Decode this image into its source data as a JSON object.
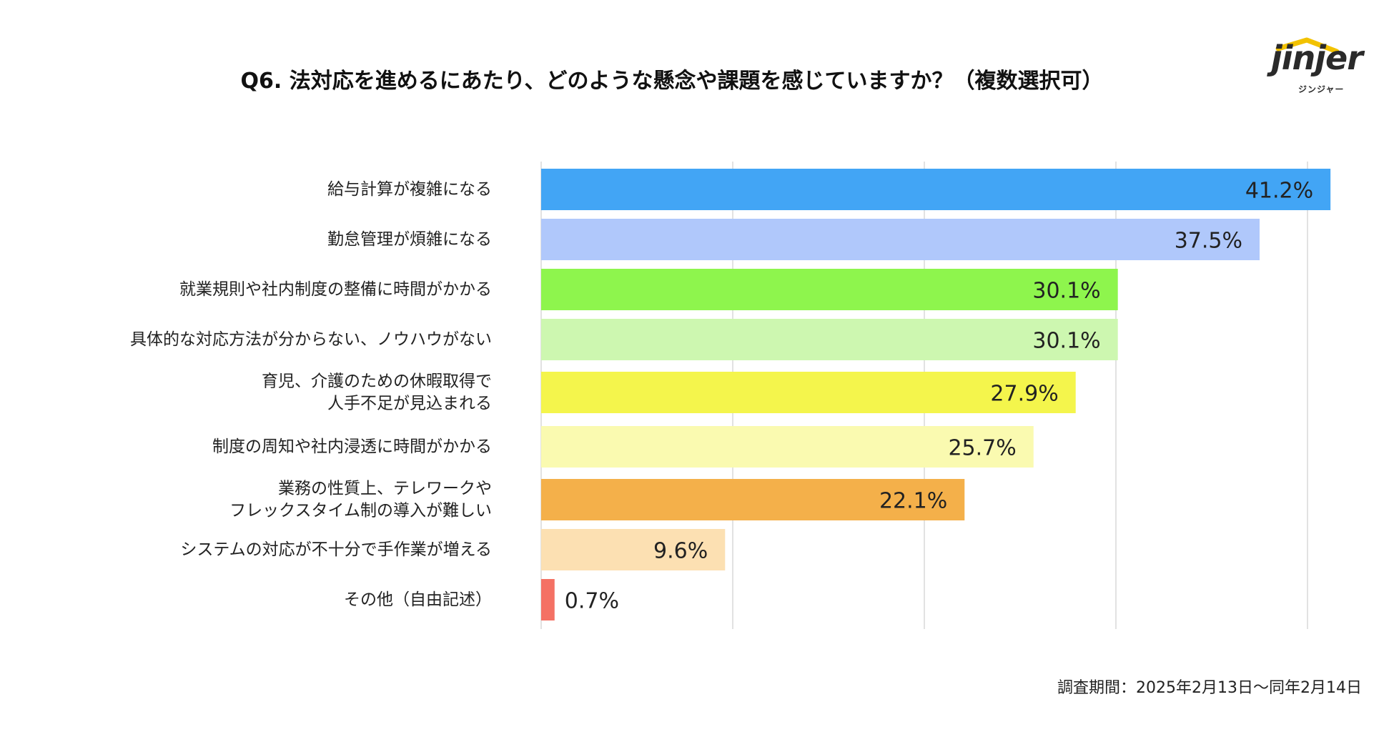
{
  "title": "Q6. 法対応を進めるにあたり、どのような懸念や課題を感じていますか？（複数選択可）",
  "logo": {
    "name": "jinjer",
    "subtitle": "ジンジャー"
  },
  "footnote": "調査期間：2025年2月13日〜同年2月14日",
  "chart_data": {
    "type": "bar",
    "orientation": "horizontal",
    "title": "Q6. 法対応を進めるにあたり、どのような懸念や課題を感じていますか？（複数選択可）",
    "unit": "%",
    "xlim": [
      0,
      40
    ],
    "grid": true,
    "categories": [
      [
        "給与計算が複雑になる"
      ],
      [
        "勤怠管理が煩雑になる"
      ],
      [
        "就業規則や社内制度の整備に時間がかかる"
      ],
      [
        "具体的な対応方法が分からない、ノウハウがない"
      ],
      [
        "育児、介護のための休暇取得で",
        "人手不足が見込まれる"
      ],
      [
        "制度の周知や社内浸透に時間がかかる"
      ],
      [
        "業務の性質上、テレワークや",
        "フレックスタイム制の導入が難しい"
      ],
      [
        "システムの対応が不十分で手作業が増える"
      ],
      [
        "その他（自由記述）"
      ]
    ],
    "values": [
      41.2,
      37.5,
      30.1,
      30.1,
      27.9,
      25.7,
      22.1,
      9.6,
      0.7
    ],
    "value_labels": [
      "41.2%",
      "37.5%",
      "30.1%",
      "30.1%",
      "27.9%",
      "25.7%",
      "22.1%",
      "9.6%",
      "0.7%"
    ],
    "colors": [
      "#42a5f5",
      "#b0c8fb",
      "#8ef54d",
      "#cdf7b0",
      "#f4f54c",
      "#fafab0",
      "#f4b04a",
      "#fce0b2",
      "#f47164"
    ]
  }
}
